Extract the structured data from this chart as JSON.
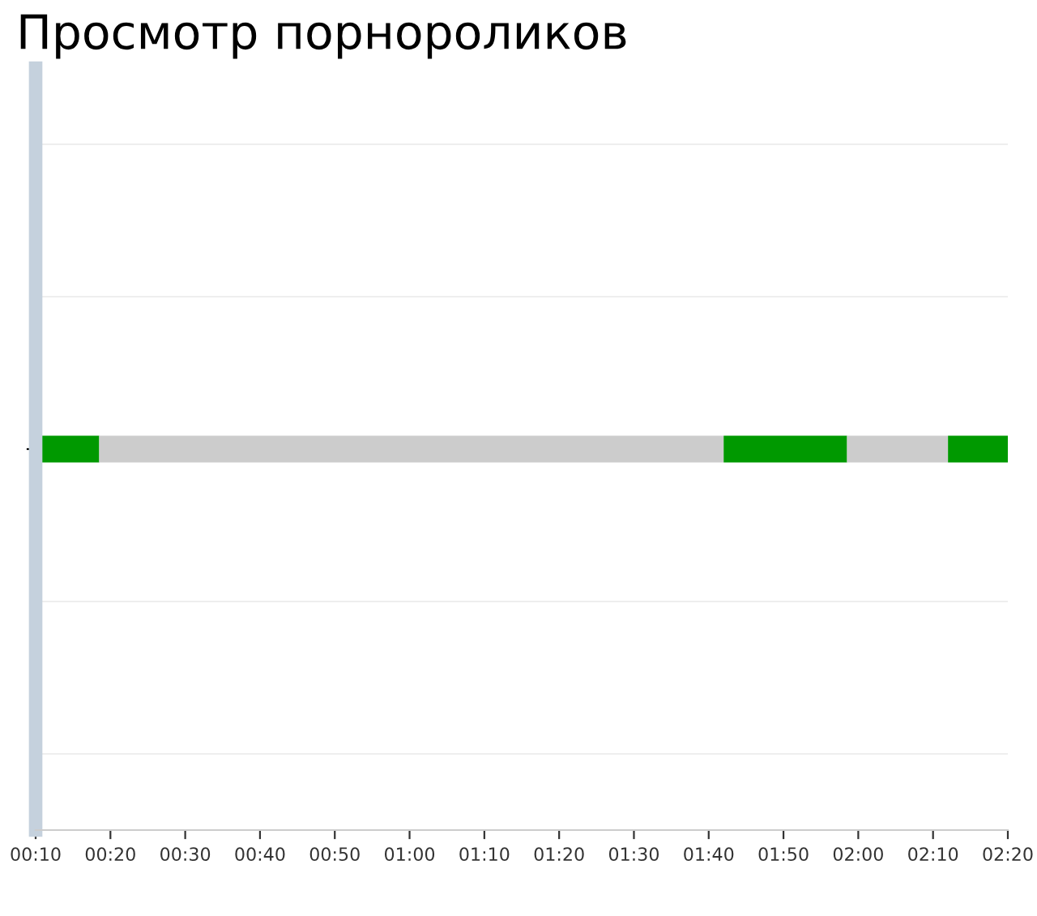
{
  "chart_data": {
    "type": "bar",
    "orientation": "horizontal",
    "title": "Просмотр порнороликов",
    "categories": [
      null
    ],
    "series": [
      {
        "color": "#009900",
        "values": [
          8.5
        ],
        "base": [
          10
        ]
      },
      {
        "color": "#cccccc",
        "values": [
          83.5
        ],
        "base": [
          18.5
        ]
      },
      {
        "color": "#009900",
        "values": [
          16.5
        ],
        "base": [
          102
        ]
      },
      {
        "color": "#cccccc",
        "values": [
          13.5
        ],
        "base": [
          118.5
        ]
      },
      {
        "color": "#009900",
        "values": [
          8
        ],
        "base": [
          132
        ]
      }
    ],
    "xlim": [
      10,
      140
    ],
    "xticks": [
      {
        "value": 10,
        "label": "00:10"
      },
      {
        "value": 20,
        "label": "00:20"
      },
      {
        "value": 30,
        "label": "00:30"
      },
      {
        "value": 40,
        "label": "00:40"
      },
      {
        "value": 50,
        "label": "00:50"
      },
      {
        "value": 60,
        "label": "01:00"
      },
      {
        "value": 70,
        "label": "01:10"
      },
      {
        "value": 80,
        "label": "01:20"
      },
      {
        "value": 90,
        "label": "01:30"
      },
      {
        "value": 100,
        "label": "01:40"
      },
      {
        "value": 110,
        "label": "01:50"
      },
      {
        "value": 120,
        "label": "02:00"
      },
      {
        "value": 130,
        "label": "02:10"
      },
      {
        "value": 140,
        "label": "02:20"
      }
    ],
    "tick_labels": "x",
    "grid": "y",
    "legend": false
  }
}
